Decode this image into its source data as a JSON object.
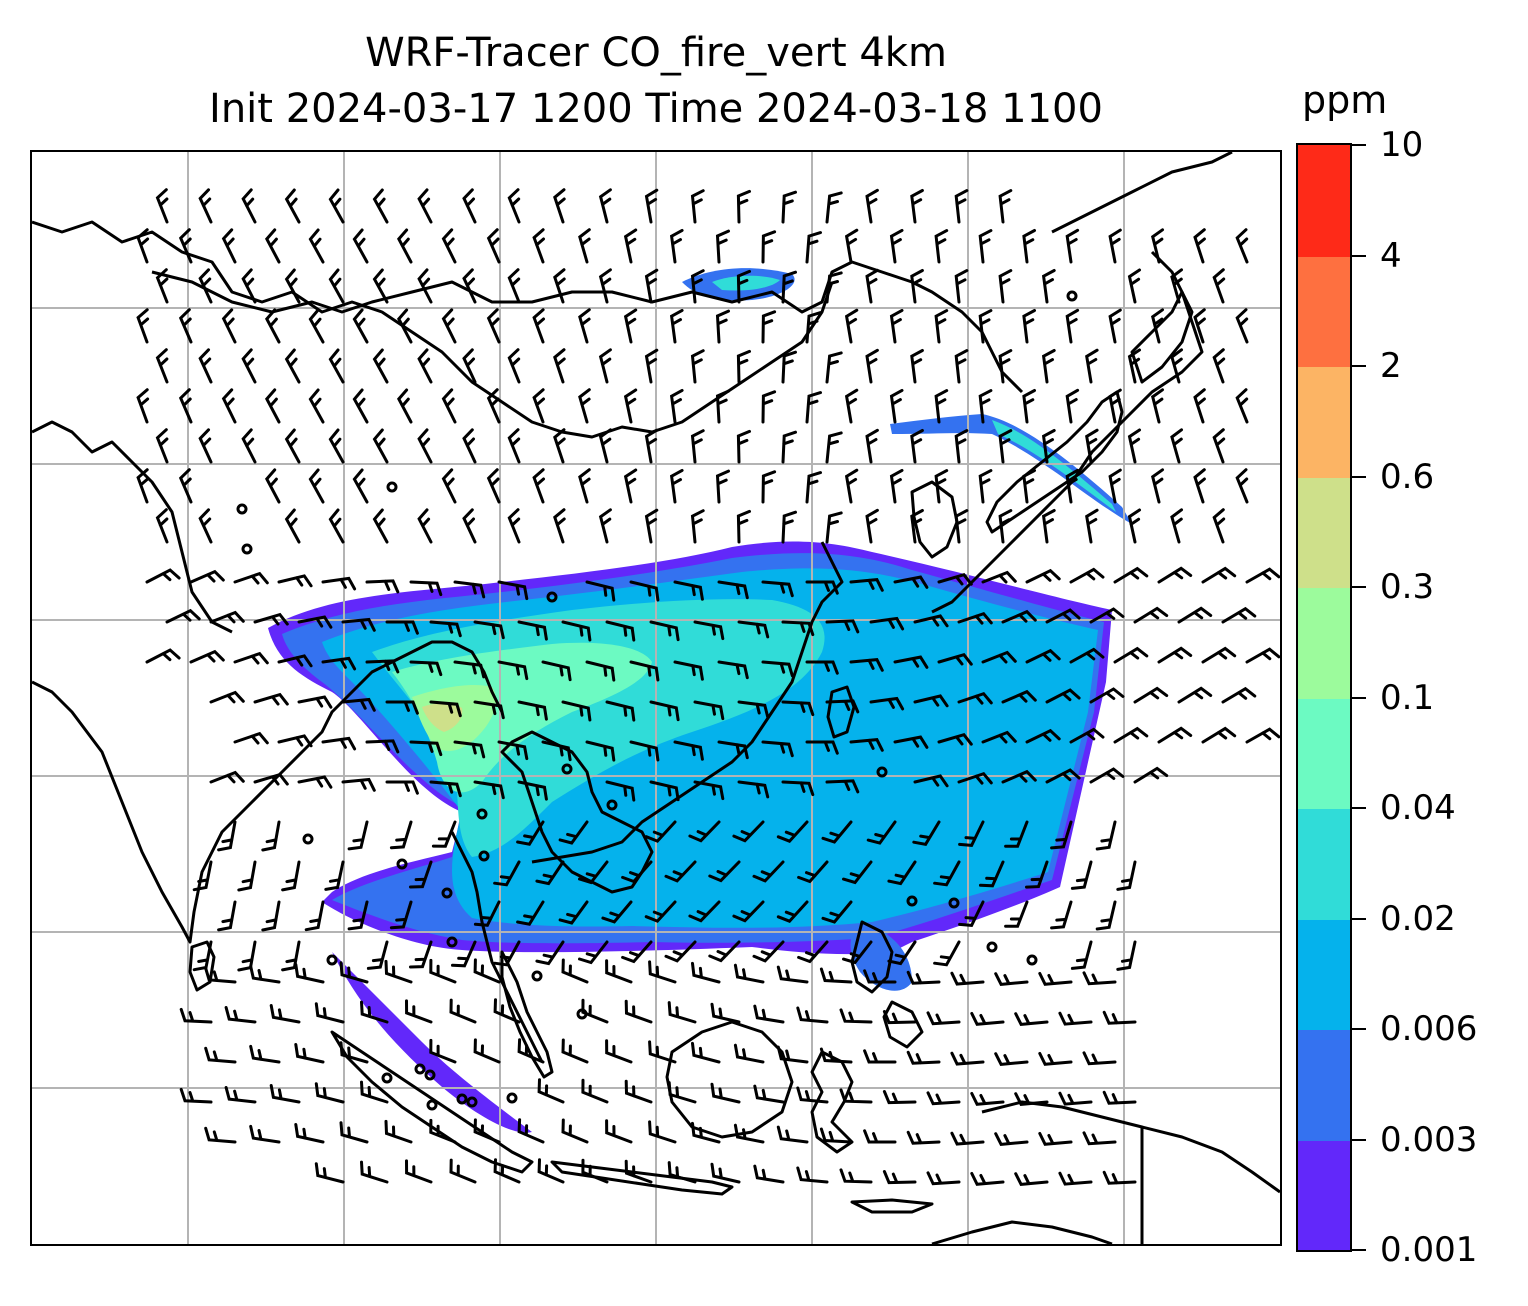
{
  "title": {
    "line1": "WRF-Tracer CO_fire_vert 4km",
    "line2": "Init 2024-03-17 1200 Time 2024-03-18 1100"
  },
  "colorbar": {
    "unit": "ppm",
    "levels": [
      "0.001",
      "0.003",
      "0.006",
      "0.02",
      "0.04",
      "0.1",
      "0.3",
      "0.6",
      "2",
      "4",
      "10"
    ],
    "colors": [
      "#6228fa",
      "#3472f0",
      "#05b2ec",
      "#30dcd8",
      "#6cfac2",
      "#9cfb9c",
      "#cee08a",
      "#fcb464",
      "#fe7040",
      "#fe2a18"
    ]
  },
  "map": {
    "gridlines": true,
    "coastline_color": "#000000",
    "overlay": "wind barbs",
    "plume_colors": {
      "outer": "#6228fa",
      "edge": "#3472f0",
      "main": "#05b2ec",
      "inner": "#30dcd8",
      "core": "#6cfac2",
      "hot": "#9cfb9c",
      "peak": "#cee08a"
    }
  }
}
